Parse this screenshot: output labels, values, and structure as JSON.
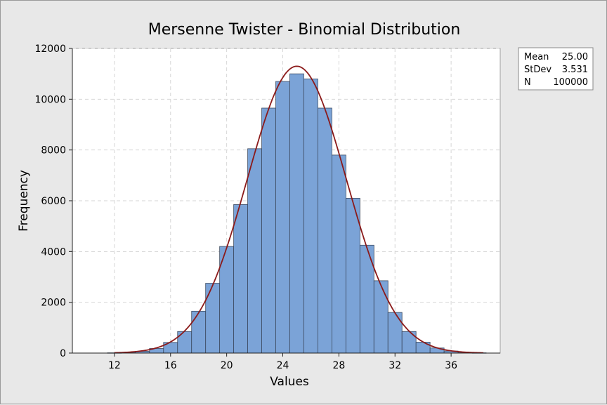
{
  "chart_data": {
    "type": "bar",
    "title": "Mersenne Twister - Binomial Distribution",
    "xlabel": "Values",
    "ylabel": "Frequency",
    "xlim": [
      9,
      39.5
    ],
    "ylim": [
      0,
      12000
    ],
    "xticks": [
      12,
      16,
      20,
      24,
      28,
      32,
      36
    ],
    "yticks": [
      0,
      2000,
      4000,
      6000,
      8000,
      10000,
      12000
    ],
    "grid": true,
    "bin_width": 1,
    "bins": [
      {
        "x": 10,
        "value": 0
      },
      {
        "x": 11,
        "value": 0
      },
      {
        "x": 12,
        "value": 10
      },
      {
        "x": 13,
        "value": 30
      },
      {
        "x": 14,
        "value": 70
      },
      {
        "x": 15,
        "value": 180
      },
      {
        "x": 16,
        "value": 420
      },
      {
        "x": 17,
        "value": 850
      },
      {
        "x": 18,
        "value": 1650
      },
      {
        "x": 19,
        "value": 2750
      },
      {
        "x": 20,
        "value": 4200
      },
      {
        "x": 21,
        "value": 5850
      },
      {
        "x": 22,
        "value": 8050
      },
      {
        "x": 23,
        "value": 9650
      },
      {
        "x": 24,
        "value": 10700
      },
      {
        "x": 25,
        "value": 11000
      },
      {
        "x": 26,
        "value": 10800
      },
      {
        "x": 27,
        "value": 9650
      },
      {
        "x": 28,
        "value": 7800
      },
      {
        "x": 29,
        "value": 6100
      },
      {
        "x": 30,
        "value": 4250
      },
      {
        "x": 31,
        "value": 2850
      },
      {
        "x": 32,
        "value": 1600
      },
      {
        "x": 33,
        "value": 850
      },
      {
        "x": 34,
        "value": 430
      },
      {
        "x": 35,
        "value": 200
      },
      {
        "x": 36,
        "value": 80
      },
      {
        "x": 37,
        "value": 30
      },
      {
        "x": 38,
        "value": 10
      }
    ],
    "fit_curve": {
      "type": "normal",
      "mean": 25.0,
      "stdev": 3.531,
      "n": 100000,
      "x_range": [
        12,
        38.3
      ],
      "color": "#8b1a1a"
    },
    "bar_color": "#7ba3d7",
    "bar_edge_color": "#3c4a60",
    "legend": {
      "position": "top-right",
      "rows": [
        {
          "label": "Mean",
          "value": "25.00"
        },
        {
          "label": "StDev",
          "value": "3.531"
        },
        {
          "label": "N",
          "value": "100000"
        }
      ]
    }
  }
}
